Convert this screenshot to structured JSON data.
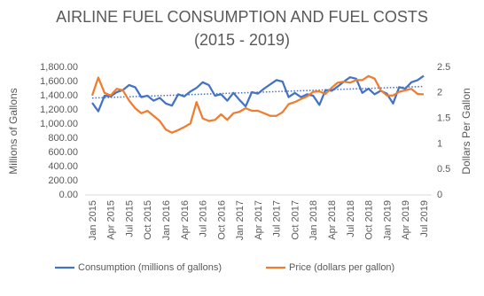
{
  "chart_data": {
    "type": "line",
    "title": "AIRLINE FUEL CONSUMPTION AND FUEL COSTS",
    "subtitle": "(2015 - 2019)",
    "y_label": "Millions of Gallons",
    "y2_label": "Dollars Per Gallon",
    "categories": [
      "Jan 2015",
      null,
      null,
      "Apr 2015",
      null,
      null,
      "Jul 2015",
      null,
      null,
      "Oct 2015",
      null,
      null,
      "Jan 2016",
      null,
      null,
      "Apr 2016",
      null,
      null,
      "Jul 2016",
      null,
      null,
      "Oct 2016",
      null,
      null,
      "Jan 2017",
      null,
      null,
      "Apr 2017",
      null,
      null,
      "Jul 2017",
      null,
      null,
      "Oct 2017",
      null,
      null,
      "Jan 2018",
      null,
      null,
      "Apr 2018",
      null,
      null,
      "Jul 2018",
      null,
      null,
      "Oct 2018",
      null,
      null,
      "Jan 2019",
      null,
      null,
      "Apr 2019",
      null,
      null,
      "Jul 2019"
    ],
    "series": [
      {
        "name": "Consumption (millions of gallons)",
        "color": "#4472c4",
        "axis": "y",
        "trendline": true,
        "values": [
          1300,
          1180,
          1400,
          1390,
          1450,
          1480,
          1550,
          1520,
          1380,
          1400,
          1330,
          1370,
          1290,
          1260,
          1420,
          1390,
          1460,
          1510,
          1590,
          1550,
          1400,
          1420,
          1330,
          1440,
          1340,
          1250,
          1450,
          1430,
          1500,
          1560,
          1620,
          1600,
          1380,
          1440,
          1380,
          1420,
          1400,
          1270,
          1480,
          1470,
          1530,
          1600,
          1660,
          1640,
          1440,
          1500,
          1420,
          1470,
          1430,
          1290,
          1520,
          1500,
          1590,
          1620,
          1680
        ]
      },
      {
        "name": "Price (dollars per gallon)",
        "color": "#ed7d31",
        "axis": "y2",
        "values": [
          1.95,
          2.3,
          2.0,
          1.95,
          2.08,
          2.05,
          1.85,
          1.7,
          1.6,
          1.65,
          1.55,
          1.45,
          1.28,
          1.22,
          1.27,
          1.33,
          1.4,
          1.82,
          1.5,
          1.45,
          1.47,
          1.58,
          1.47,
          1.6,
          1.63,
          1.7,
          1.65,
          1.65,
          1.6,
          1.55,
          1.55,
          1.62,
          1.78,
          1.82,
          1.88,
          1.93,
          2.02,
          2.03,
          1.98,
          2.1,
          2.2,
          2.22,
          2.2,
          2.25,
          2.25,
          2.33,
          2.28,
          2.05,
          1.95,
          1.95,
          2.02,
          2.05,
          2.08,
          1.98,
          1.97
        ]
      }
    ],
    "ylim": [
      0,
      1800
    ],
    "yticks": [
      {
        "value": 0,
        "label": "0.00"
      },
      {
        "value": 200,
        "label": "200.00"
      },
      {
        "value": 400,
        "label": "400.00"
      },
      {
        "value": 600,
        "label": "600.00"
      },
      {
        "value": 800,
        "label": "800.00"
      },
      {
        "value": 1000,
        "label": "1,000.00"
      },
      {
        "value": 1200,
        "label": "1,200.00"
      },
      {
        "value": 1400,
        "label": "1,400.00"
      },
      {
        "value": 1600,
        "label": "1,600.00"
      },
      {
        "value": 1800,
        "label": "1,800.00"
      }
    ],
    "y2lim": [
      0,
      2.5
    ],
    "y2ticks": [
      0,
      0.5,
      1,
      1.5,
      2,
      2.5
    ],
    "legend": "bottom"
  }
}
